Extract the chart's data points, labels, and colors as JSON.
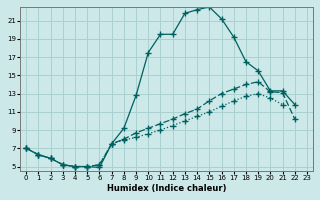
{
  "xlabel": "Humidex (Indice chaleur)",
  "bg_color": "#cce8e8",
  "grid_color": "#aad0d0",
  "line_color": "#006060",
  "xlim": [
    -0.5,
    23.5
  ],
  "ylim": [
    4.5,
    22.5
  ],
  "xticks": [
    0,
    1,
    2,
    3,
    4,
    5,
    6,
    7,
    8,
    9,
    10,
    11,
    12,
    13,
    14,
    15,
    16,
    17,
    18,
    19,
    20,
    21,
    22,
    23
  ],
  "yticks": [
    5,
    7,
    9,
    11,
    13,
    15,
    17,
    19,
    21
  ],
  "curve1_x": [
    0,
    1,
    2,
    3,
    4,
    5,
    6,
    7,
    8,
    9,
    10,
    11,
    12,
    13,
    14,
    15,
    16,
    17,
    18,
    19,
    20,
    21,
    22
  ],
  "curve1_y": [
    7.0,
    6.3,
    5.9,
    5.2,
    5.0,
    5.0,
    4.9,
    7.5,
    9.2,
    12.8,
    17.5,
    19.5,
    19.5,
    21.8,
    22.2,
    22.5,
    21.2,
    19.2,
    16.5,
    15.5,
    13.3,
    13.3,
    11.8
  ],
  "curve2_x": [
    0,
    1,
    2,
    3,
    4,
    5,
    6,
    7,
    8,
    9,
    10,
    11,
    12,
    13,
    14,
    15,
    16,
    17,
    18,
    19,
    20,
    21,
    22
  ],
  "curve2_y": [
    7.0,
    6.3,
    5.9,
    5.2,
    5.0,
    5.0,
    5.2,
    7.5,
    8.0,
    8.7,
    9.2,
    9.7,
    10.2,
    10.8,
    11.3,
    12.2,
    13.0,
    13.5,
    14.0,
    14.3,
    13.2,
    13.1,
    10.2
  ],
  "curve3_x": [
    0,
    1,
    2,
    3,
    4,
    5,
    6,
    7,
    8,
    9,
    10,
    11,
    12,
    13,
    14,
    15,
    16,
    17,
    18,
    19,
    20,
    21
  ],
  "curve3_y": [
    7.0,
    6.3,
    5.9,
    5.2,
    5.0,
    5.0,
    5.2,
    7.5,
    7.9,
    8.2,
    8.6,
    9.0,
    9.5,
    10.0,
    10.5,
    11.0,
    11.6,
    12.2,
    12.7,
    13.0,
    12.5,
    11.8
  ]
}
